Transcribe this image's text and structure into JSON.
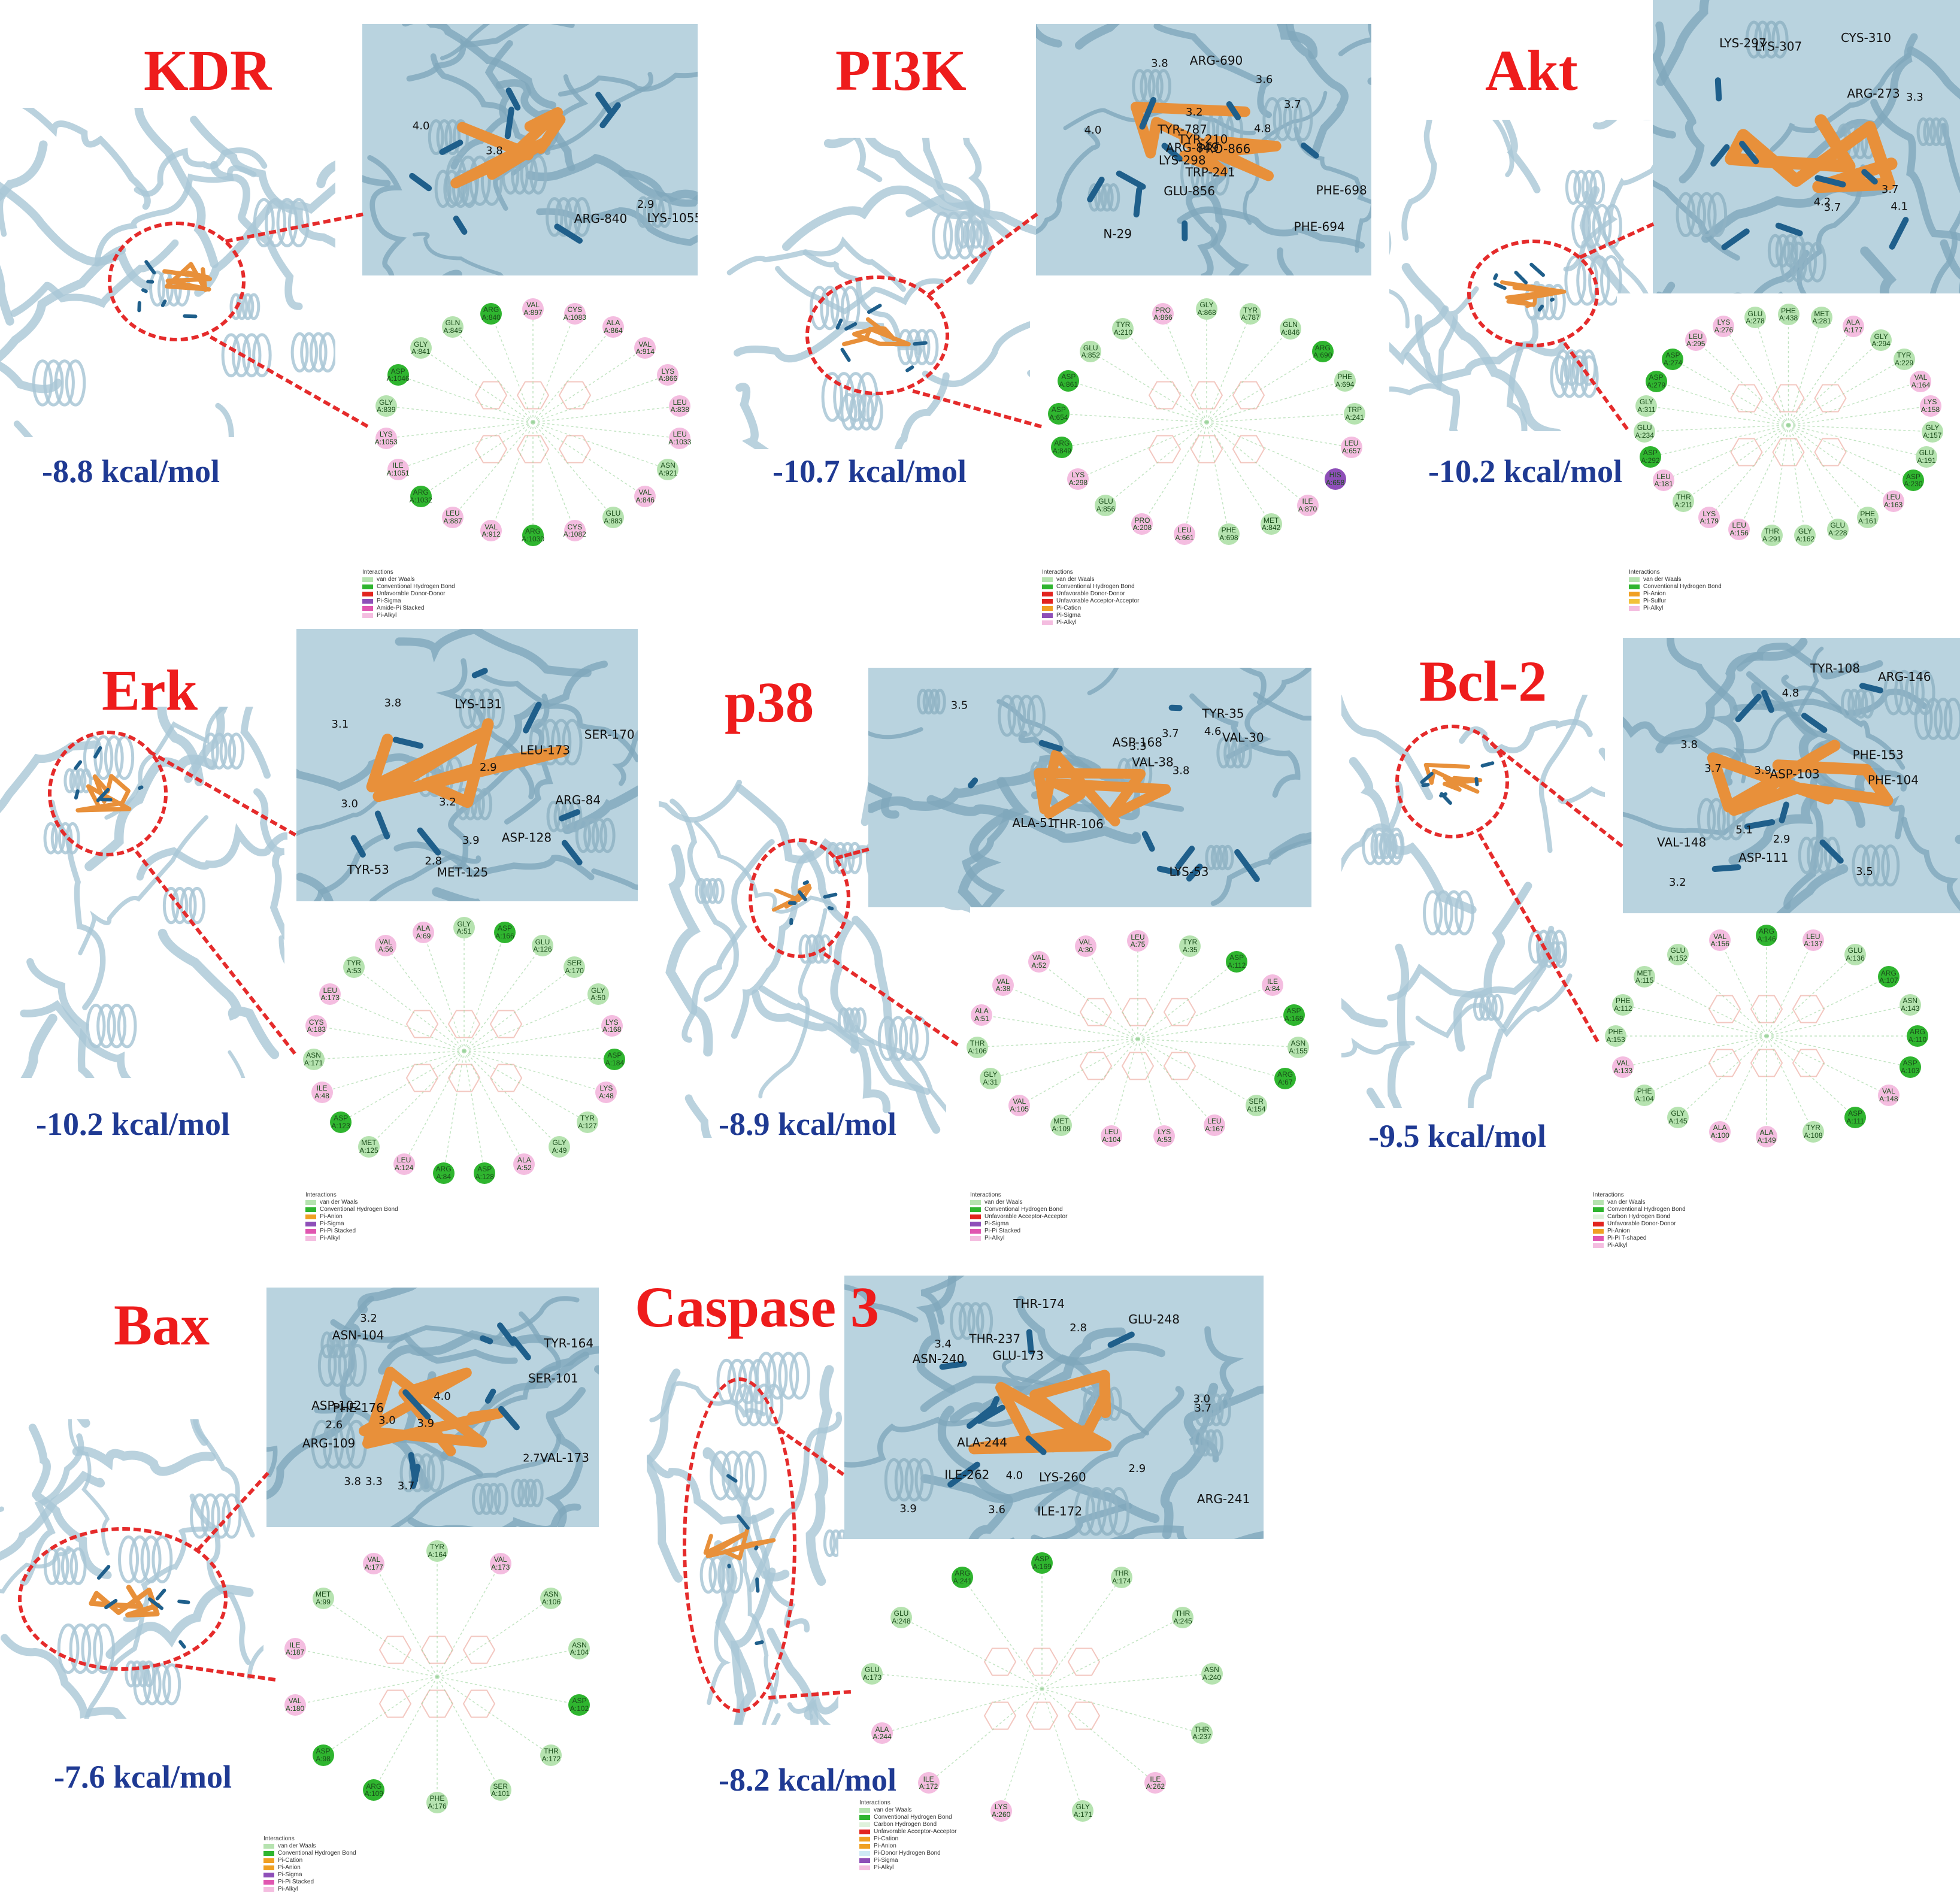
{
  "panels": [
    {
      "key": "kdr",
      "title": "KDR",
      "energy": "-8.8 kcal/mol",
      "zoom_labels": [
        "ARG-840",
        "LYS-1055",
        "4.0",
        "2.9",
        "3.8"
      ],
      "residues": [
        "VAL A:897",
        "CYS A:1083",
        "ALA A:864",
        "VAL A:914",
        "LYS A:866",
        "LEU A:838",
        "LEU A:1033",
        "ASN A:921",
        "VAL A:846",
        "GLU A:883",
        "CYS A:1082",
        "ARG A:1030",
        "VAL A:912",
        "LEU A:887",
        "ARG A:1032",
        "ILE A:1051",
        "LYS A:1053",
        "GLY A:839",
        "ASP A:1046",
        "GLY A:841",
        "GLN A:845",
        "ARG A:840"
      ],
      "legend": [
        "Interactions",
        "van der Waals",
        "Conventional Hydrogen Bond",
        "Unfavorable Donor-Donor",
        "Pi-Sigma",
        "Amide-Pi Stacked",
        "Pi-Alkyl"
      ]
    },
    {
      "key": "pi3k",
      "title": "PI3K",
      "energy": "-10.7 kcal/mol",
      "zoom_labels": [
        "TYR-210",
        "LYS-298",
        "GLU-856",
        "N-29",
        "TRP-241",
        "ARG-690",
        "ARG-849",
        "PHE-694",
        "TYR-787",
        "PRO-866",
        "PHE-698",
        "3.8",
        "3.7",
        "4.0",
        "4.8",
        "3.6",
        "3.2"
      ],
      "residues": [
        "GLY A:868",
        "TYR A:787",
        "GLN A:846",
        "ARG A:690",
        "PHE A:694",
        "TRP A:241",
        "LEU A:657",
        "HIS A:658",
        "ILE A:870",
        "MET A:842",
        "PHE A:698",
        "LEU A:661",
        "PRO A:208",
        "GLU A:856",
        "LYS A:298",
        "ARG A:849",
        "ASP A:654",
        "ASP A:861",
        "GLU A:852",
        "TYR A:210",
        "PRO A:866"
      ],
      "legend": [
        "Interactions",
        "van der Waals",
        "Conventional Hydrogen Bond",
        "Unfavorable Donor-Donor",
        "Unfavorable Acceptor-Acceptor",
        "Pi-Cation",
        "Pi-Sigma",
        "Pi-Alkyl"
      ]
    },
    {
      "key": "akt",
      "title": "Akt",
      "energy": "-10.2 kcal/mol",
      "zoom_labels": [
        "LYS-297",
        "ARG-273",
        "CYS-310",
        "LYS-307",
        "4.2",
        "3.7",
        "4.1",
        "3.3",
        "3.7"
      ],
      "residues": [
        "PHE A:438",
        "MET A:281",
        "ALA A:177",
        "GLY A:294",
        "TYR A:229",
        "VAL A:164",
        "LYS A:158",
        "GLY A:157",
        "GLU A:191",
        "ASP A:230",
        "LEU A:163",
        "PHE A:161",
        "GLU A:228",
        "GLY A:162",
        "THR A:291",
        "LEU A:156",
        "LYS A:179",
        "THR A:211",
        "LEU A:181",
        "ASP A:292",
        "GLU A:234",
        "GLY A:311",
        "ASP A:279",
        "ASP A:274",
        "LEU A:295",
        "LYS A:276",
        "GLU A:278"
      ],
      "legend": [
        "Interactions",
        "van der Waals",
        "Conventional Hydrogen Bond",
        "Pi-Anion",
        "Pi-Sulfur",
        "Pi-Alkyl"
      ]
    },
    {
      "key": "erk",
      "title": "Erk",
      "energy": "-10.2 kcal/mol",
      "zoom_labels": [
        "ARG-84",
        "TYR-53",
        "SER-170",
        "LYS-131",
        "ASP-128",
        "LEU-173",
        "MET-125",
        "3.0",
        "2.8",
        "3.1",
        "3.9",
        "3.8",
        "2.9",
        "3.2"
      ],
      "residues": [
        "GLY A:51",
        "ASP A:166",
        "GLU A:126",
        "SER A:170",
        "GLY A:50",
        "LYS A:168",
        "ASP A:184",
        "LYS A:48",
        "TYR A:127",
        "GLY A:49",
        "ALA A:52",
        "ASP A:128",
        "ARG A:84",
        "LEU A:124",
        "MET A:125",
        "ASP A:123",
        "ILE A:48",
        "ASN A:171",
        "CYS A:183",
        "LEU A:173",
        "TYR A:53",
        "VAL A:56",
        "ALA A:69"
      ],
      "legend": [
        "Interactions",
        "van der Waals",
        "Conventional Hydrogen Bond",
        "Pi-Anion",
        "Pi-Sigma",
        "Pi-Pi Stacked",
        "Pi-Alkyl"
      ]
    },
    {
      "key": "p38",
      "title": "p38",
      "energy": "-8.9 kcal/mol",
      "zoom_labels": [
        "ASP-168",
        "THR-106",
        "ALA-51",
        "VAL-38",
        "LYS-53",
        "TYR-35",
        "VAL-30",
        "3.5",
        "4.6",
        "3.7",
        "3.8",
        "3.3"
      ],
      "residues": [
        "LEU A:75",
        "TYR A:35",
        "ASP A:112",
        "ILE A:84",
        "ASP A:168",
        "ASN A:155",
        "ARG A:67",
        "SER A:154",
        "LEU A:167",
        "LYS A:53",
        "LEU A:104",
        "MET A:109",
        "VAL A:105",
        "GLY A:31",
        "THR A:106",
        "ALA A:51",
        "VAL A:38",
        "VAL A:52",
        "VAL A:30"
      ],
      "legend": [
        "Interactions",
        "van der Waals",
        "Conventional Hydrogen Bond",
        "Unfavorable Acceptor-Acceptor",
        "Pi-Sigma",
        "Pi-Pi Stacked",
        "Pi-Alkyl"
      ]
    },
    {
      "key": "bcl2",
      "title": "Bcl-2",
      "energy": "-9.5 kcal/mol",
      "zoom_labels": [
        "ASP-111",
        "PHE-153",
        "TYR-108",
        "PHE-104",
        "ARG-146",
        "VAL-148",
        "ASP-103",
        "3.7",
        "3.9",
        "4.8",
        "3.2",
        "3.8",
        "5.1",
        "3.5",
        "2.9"
      ],
      "residues": [
        "ARG A:146",
        "LEU A:137",
        "GLU A:136",
        "ARG A:107",
        "ASN A:143",
        "ARG A:110",
        "ASP A:103",
        "VAL A:148",
        "ASP A:111",
        "TYR A:108",
        "ALA A:149",
        "ALA A:100",
        "GLY A:145",
        "PHE A:104",
        "VAL A:133",
        "PHE A:153",
        "PHE A:112",
        "MET A:115",
        "GLU A:152",
        "VAL A:156"
      ],
      "legend": [
        "Interactions",
        "van der Waals",
        "Conventional Hydrogen Bond",
        "Carbon Hydrogen Bond",
        "Unfavorable Donor-Donor",
        "Pi-Anion",
        "Pi-Pi T-shaped",
        "Pi-Alkyl"
      ]
    },
    {
      "key": "bax",
      "title": "Bax",
      "energy": "-7.6 kcal/mol",
      "zoom_labels": [
        "ASP-102",
        "ASN-104",
        "SER-101",
        "ARG-109",
        "TYR-164",
        "PHE-176",
        "VAL-173",
        "3.3",
        "2.7",
        "3.2",
        "3.0",
        "4.0",
        "3.8",
        "3.9",
        "3.7",
        "2.6"
      ],
      "residues": [
        "TYR A:164",
        "VAL A:173",
        "ASN A:106",
        "ASN A:104",
        "ASP A:102",
        "THR A:172",
        "SER A:101",
        "PHE A:176",
        "ARG A:109",
        "ASP A:98",
        "VAL A:180",
        "ILE A:187",
        "MET A:99",
        "VAL A:177"
      ],
      "legend": [
        "Interactions",
        "van der Waals",
        "Conventional Hydrogen Bond",
        "Pi-Cation",
        "Pi-Anion",
        "Pi-Sigma",
        "Pi-Pi Stacked",
        "Pi-Alkyl"
      ]
    },
    {
      "key": "casp3",
      "title": "Caspase 3",
      "energy": "-8.2 kcal/mol",
      "zoom_labels": [
        "GLU-248",
        "LYS-260",
        "ALA-244",
        "ILE-262",
        "ASN-240",
        "THR-237",
        "ILE-172",
        "GLU-173",
        "THR-174",
        "ARG-241",
        "2.8",
        "3.7",
        "3.9",
        "3.4",
        "3.6",
        "3.0",
        "4.0",
        "2.9"
      ],
      "residues": [
        "ASP A:169",
        "THR A:174",
        "THR A:245",
        "ASN A:240",
        "THR A:237",
        "ILE A:262",
        "GLY A:171",
        "LYS A:260",
        "ILE A:172",
        "ALA A:244",
        "GLU A:173",
        "GLU A:248",
        "ARG A:241"
      ],
      "legend": [
        "Interactions",
        "van der Waals",
        "Conventional Hydrogen Bond",
        "Carbon Hydrogen Bond",
        "Unfavorable Acceptor-Acceptor",
        "Pi-Cation",
        "Pi-Anion",
        "Pi-Donor Hydrogen Bond",
        "Pi-Sigma",
        "Pi-Alkyl"
      ]
    }
  ],
  "colors": {
    "title": "#ee1c1c",
    "energy": "#1f3a93",
    "callout": "#e52b2b",
    "protein": "#a9c7d6",
    "ligand": "#e8903a",
    "residue_stick": "#1f5f8b",
    "vdw": "#b6e3b0",
    "hbond": "#2fb52f",
    "unfav": "#e2241f",
    "pi_alkyl": "#f4bde0",
    "pi_sigma": "#8e4fb8",
    "pi_anion": "#f0a023"
  }
}
